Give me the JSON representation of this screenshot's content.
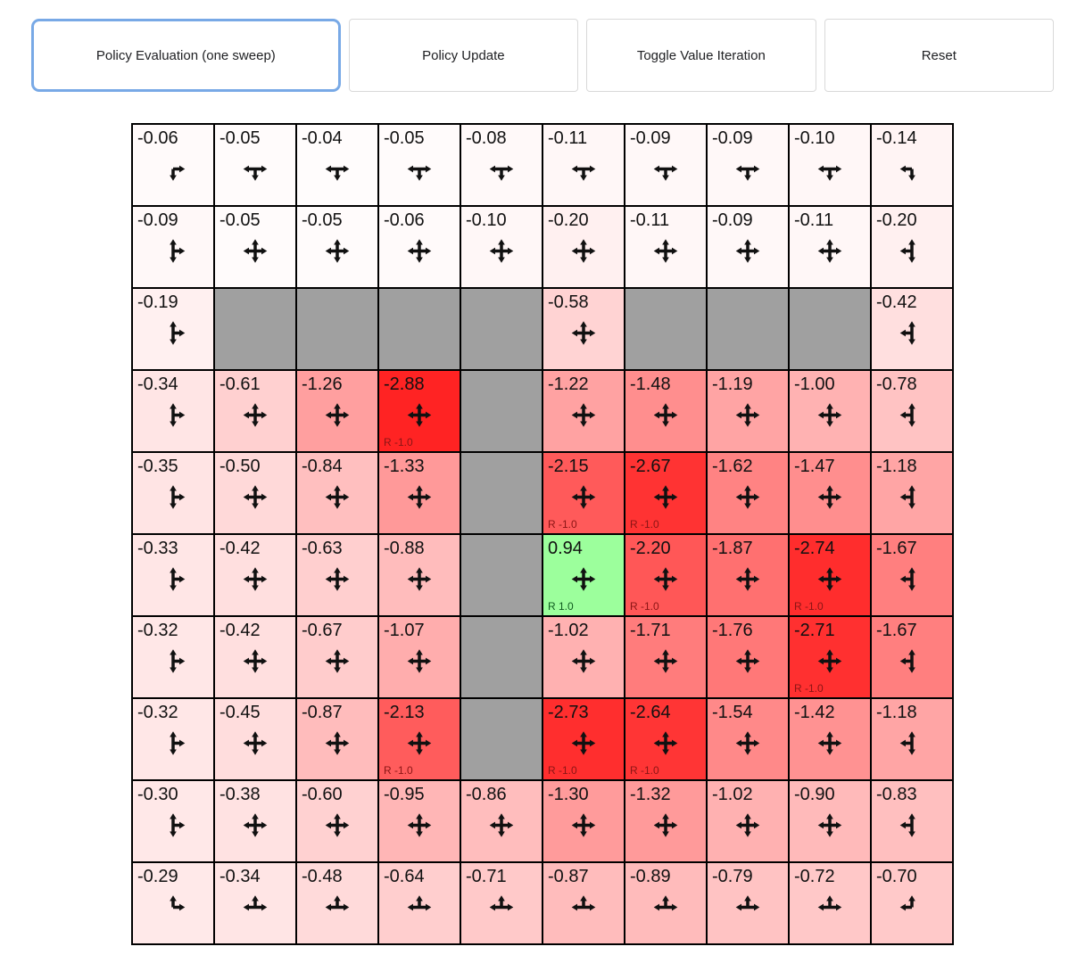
{
  "toolbar": {
    "buttons": [
      {
        "label": "Policy Evaluation (one sweep)",
        "selected": true
      },
      {
        "label": "Policy Update",
        "selected": false
      },
      {
        "label": "Toggle Value Iteration",
        "selected": false
      },
      {
        "label": "Reset",
        "selected": false
      }
    ]
  },
  "palette": {
    "selected_button_border": "#78a9e6",
    "button_border": "#d9d9d9",
    "wall": "#a0a0a0",
    "grid_border": "#000000",
    "value_text": "#111111",
    "reward_negative_text": "#8b1515",
    "reward_positive_text": "#0f5c1f",
    "strongest_negative_bg": "#ff2323",
    "positive_bg": "#9cff9c"
  },
  "grid": {
    "rows": 10,
    "cols": 10,
    "cells": [
      [
        {
          "value": "-0.06",
          "dirs": [
            "down",
            "right"
          ]
        },
        {
          "value": "-0.05",
          "dirs": [
            "down",
            "left",
            "right"
          ]
        },
        {
          "value": "-0.04",
          "dirs": [
            "down",
            "left",
            "right"
          ]
        },
        {
          "value": "-0.05",
          "dirs": [
            "down",
            "left",
            "right"
          ]
        },
        {
          "value": "-0.08",
          "dirs": [
            "down",
            "left",
            "right"
          ]
        },
        {
          "value": "-0.11",
          "dirs": [
            "down",
            "left",
            "right"
          ]
        },
        {
          "value": "-0.09",
          "dirs": [
            "down",
            "left",
            "right"
          ]
        },
        {
          "value": "-0.09",
          "dirs": [
            "down",
            "left",
            "right"
          ]
        },
        {
          "value": "-0.10",
          "dirs": [
            "down",
            "left",
            "right"
          ]
        },
        {
          "value": "-0.14",
          "dirs": [
            "down",
            "left"
          ]
        }
      ],
      [
        {
          "value": "-0.09",
          "dirs": [
            "up",
            "down",
            "right"
          ]
        },
        {
          "value": "-0.05",
          "dirs": [
            "up",
            "down",
            "left",
            "right"
          ]
        },
        {
          "value": "-0.05",
          "dirs": [
            "up",
            "down",
            "left",
            "right"
          ]
        },
        {
          "value": "-0.06",
          "dirs": [
            "up",
            "down",
            "left",
            "right"
          ]
        },
        {
          "value": "-0.10",
          "dirs": [
            "up",
            "down",
            "left",
            "right"
          ]
        },
        {
          "value": "-0.20",
          "dirs": [
            "up",
            "down",
            "left",
            "right"
          ]
        },
        {
          "value": "-0.11",
          "dirs": [
            "up",
            "down",
            "left",
            "right"
          ]
        },
        {
          "value": "-0.09",
          "dirs": [
            "up",
            "down",
            "left",
            "right"
          ]
        },
        {
          "value": "-0.11",
          "dirs": [
            "up",
            "down",
            "left",
            "right"
          ]
        },
        {
          "value": "-0.20",
          "dirs": [
            "up",
            "down",
            "left"
          ]
        }
      ],
      [
        {
          "value": "-0.19",
          "dirs": [
            "up",
            "down",
            "right"
          ]
        },
        {
          "wall": true
        },
        {
          "wall": true
        },
        {
          "wall": true
        },
        {
          "wall": true
        },
        {
          "value": "-0.58",
          "dirs": [
            "up",
            "down",
            "left",
            "right"
          ]
        },
        {
          "wall": true
        },
        {
          "wall": true
        },
        {
          "wall": true
        },
        {
          "value": "-0.42",
          "dirs": [
            "up",
            "down",
            "left"
          ]
        }
      ],
      [
        {
          "value": "-0.34",
          "dirs": [
            "up",
            "down",
            "right"
          ]
        },
        {
          "value": "-0.61",
          "dirs": [
            "up",
            "down",
            "left",
            "right"
          ]
        },
        {
          "value": "-1.26",
          "dirs": [
            "up",
            "down",
            "left",
            "right"
          ]
        },
        {
          "value": "-2.88",
          "dirs": [
            "up",
            "down",
            "left",
            "right"
          ],
          "reward": "R -1.0"
        },
        {
          "wall": true
        },
        {
          "value": "-1.22",
          "dirs": [
            "up",
            "down",
            "left",
            "right"
          ]
        },
        {
          "value": "-1.48",
          "dirs": [
            "up",
            "down",
            "left",
            "right"
          ]
        },
        {
          "value": "-1.19",
          "dirs": [
            "up",
            "down",
            "left",
            "right"
          ]
        },
        {
          "value": "-1.00",
          "dirs": [
            "up",
            "down",
            "left",
            "right"
          ]
        },
        {
          "value": "-0.78",
          "dirs": [
            "up",
            "down",
            "left"
          ]
        }
      ],
      [
        {
          "value": "-0.35",
          "dirs": [
            "up",
            "down",
            "right"
          ]
        },
        {
          "value": "-0.50",
          "dirs": [
            "up",
            "down",
            "left",
            "right"
          ]
        },
        {
          "value": "-0.84",
          "dirs": [
            "up",
            "down",
            "left",
            "right"
          ]
        },
        {
          "value": "-1.33",
          "dirs": [
            "up",
            "down",
            "left",
            "right"
          ]
        },
        {
          "wall": true
        },
        {
          "value": "-2.15",
          "dirs": [
            "up",
            "down",
            "left",
            "right"
          ],
          "reward": "R -1.0"
        },
        {
          "value": "-2.67",
          "dirs": [
            "up",
            "down",
            "left",
            "right"
          ],
          "reward": "R -1.0"
        },
        {
          "value": "-1.62",
          "dirs": [
            "up",
            "down",
            "left",
            "right"
          ]
        },
        {
          "value": "-1.47",
          "dirs": [
            "up",
            "down",
            "left",
            "right"
          ]
        },
        {
          "value": "-1.18",
          "dirs": [
            "up",
            "down",
            "left"
          ]
        }
      ],
      [
        {
          "value": "-0.33",
          "dirs": [
            "up",
            "down",
            "right"
          ]
        },
        {
          "value": "-0.42",
          "dirs": [
            "up",
            "down",
            "left",
            "right"
          ]
        },
        {
          "value": "-0.63",
          "dirs": [
            "up",
            "down",
            "left",
            "right"
          ]
        },
        {
          "value": "-0.88",
          "dirs": [
            "up",
            "down",
            "left",
            "right"
          ]
        },
        {
          "wall": true
        },
        {
          "value": "0.94",
          "dirs": [
            "up",
            "down",
            "left",
            "right"
          ],
          "reward": "R 1.0"
        },
        {
          "value": "-2.20",
          "dirs": [
            "up",
            "down",
            "left",
            "right"
          ],
          "reward": "R -1.0"
        },
        {
          "value": "-1.87",
          "dirs": [
            "up",
            "down",
            "left",
            "right"
          ]
        },
        {
          "value": "-2.74",
          "dirs": [
            "up",
            "down",
            "left",
            "right"
          ],
          "reward": "R -1.0"
        },
        {
          "value": "-1.67",
          "dirs": [
            "up",
            "down",
            "left"
          ]
        }
      ],
      [
        {
          "value": "-0.32",
          "dirs": [
            "up",
            "down",
            "right"
          ]
        },
        {
          "value": "-0.42",
          "dirs": [
            "up",
            "down",
            "left",
            "right"
          ]
        },
        {
          "value": "-0.67",
          "dirs": [
            "up",
            "down",
            "left",
            "right"
          ]
        },
        {
          "value": "-1.07",
          "dirs": [
            "up",
            "down",
            "left",
            "right"
          ]
        },
        {
          "wall": true
        },
        {
          "value": "-1.02",
          "dirs": [
            "up",
            "down",
            "left",
            "right"
          ]
        },
        {
          "value": "-1.71",
          "dirs": [
            "up",
            "down",
            "left",
            "right"
          ]
        },
        {
          "value": "-1.76",
          "dirs": [
            "up",
            "down",
            "left",
            "right"
          ]
        },
        {
          "value": "-2.71",
          "dirs": [
            "up",
            "down",
            "left",
            "right"
          ],
          "reward": "R -1.0"
        },
        {
          "value": "-1.67",
          "dirs": [
            "up",
            "down",
            "left"
          ]
        }
      ],
      [
        {
          "value": "-0.32",
          "dirs": [
            "up",
            "down",
            "right"
          ]
        },
        {
          "value": "-0.45",
          "dirs": [
            "up",
            "down",
            "left",
            "right"
          ]
        },
        {
          "value": "-0.87",
          "dirs": [
            "up",
            "down",
            "left",
            "right"
          ]
        },
        {
          "value": "-2.13",
          "dirs": [
            "up",
            "down",
            "left",
            "right"
          ],
          "reward": "R -1.0"
        },
        {
          "wall": true
        },
        {
          "value": "-2.73",
          "dirs": [
            "up",
            "down",
            "left",
            "right"
          ],
          "reward": "R -1.0"
        },
        {
          "value": "-2.64",
          "dirs": [
            "up",
            "down",
            "left",
            "right"
          ],
          "reward": "R -1.0"
        },
        {
          "value": "-1.54",
          "dirs": [
            "up",
            "down",
            "left",
            "right"
          ]
        },
        {
          "value": "-1.42",
          "dirs": [
            "up",
            "down",
            "left",
            "right"
          ]
        },
        {
          "value": "-1.18",
          "dirs": [
            "up",
            "down",
            "left"
          ]
        }
      ],
      [
        {
          "value": "-0.30",
          "dirs": [
            "up",
            "down",
            "right"
          ]
        },
        {
          "value": "-0.38",
          "dirs": [
            "up",
            "down",
            "left",
            "right"
          ]
        },
        {
          "value": "-0.60",
          "dirs": [
            "up",
            "down",
            "left",
            "right"
          ]
        },
        {
          "value": "-0.95",
          "dirs": [
            "up",
            "down",
            "left",
            "right"
          ]
        },
        {
          "value": "-0.86",
          "dirs": [
            "up",
            "down",
            "left",
            "right"
          ]
        },
        {
          "value": "-1.30",
          "dirs": [
            "up",
            "down",
            "left",
            "right"
          ]
        },
        {
          "value": "-1.32",
          "dirs": [
            "up",
            "down",
            "left",
            "right"
          ]
        },
        {
          "value": "-1.02",
          "dirs": [
            "up",
            "down",
            "left",
            "right"
          ]
        },
        {
          "value": "-0.90",
          "dirs": [
            "up",
            "down",
            "left",
            "right"
          ]
        },
        {
          "value": "-0.83",
          "dirs": [
            "up",
            "down",
            "left"
          ]
        }
      ],
      [
        {
          "value": "-0.29",
          "dirs": [
            "up",
            "right"
          ]
        },
        {
          "value": "-0.34",
          "dirs": [
            "up",
            "left",
            "right"
          ]
        },
        {
          "value": "-0.48",
          "dirs": [
            "up",
            "left",
            "right"
          ]
        },
        {
          "value": "-0.64",
          "dirs": [
            "up",
            "left",
            "right"
          ]
        },
        {
          "value": "-0.71",
          "dirs": [
            "up",
            "left",
            "right"
          ]
        },
        {
          "value": "-0.87",
          "dirs": [
            "up",
            "left",
            "right"
          ]
        },
        {
          "value": "-0.89",
          "dirs": [
            "up",
            "left",
            "right"
          ]
        },
        {
          "value": "-0.79",
          "dirs": [
            "up",
            "left",
            "right"
          ]
        },
        {
          "value": "-0.72",
          "dirs": [
            "up",
            "left",
            "right"
          ]
        },
        {
          "value": "-0.70",
          "dirs": [
            "up",
            "left"
          ]
        }
      ]
    ]
  }
}
